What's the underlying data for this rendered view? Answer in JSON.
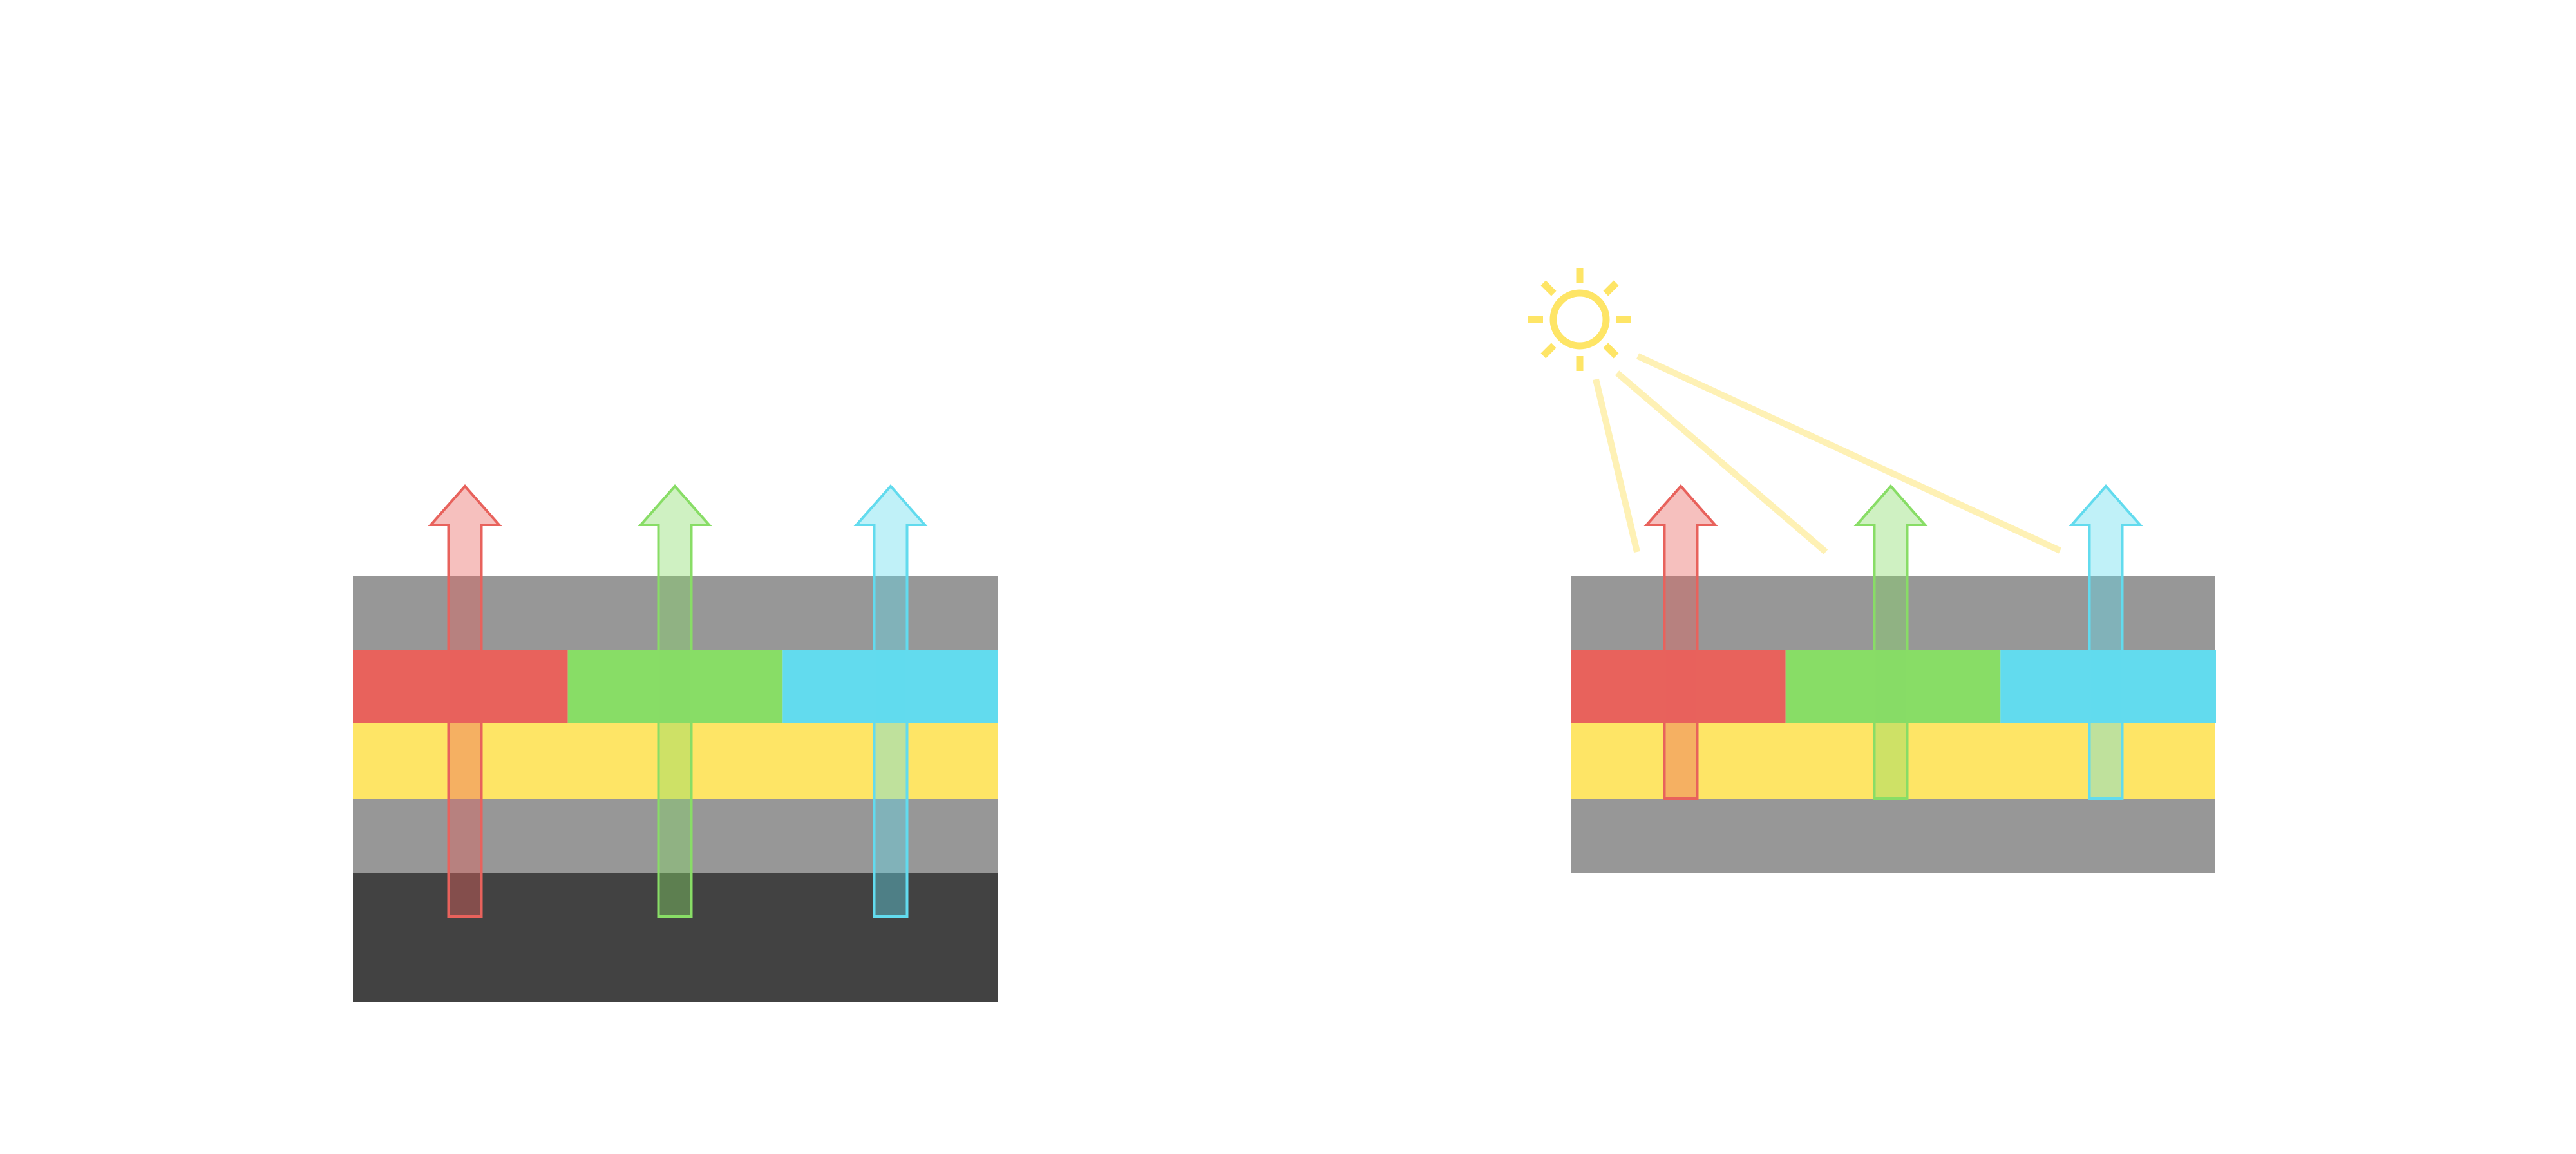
{
  "colors": {
    "gray_layer": "#979797",
    "dark_layer": "#424242",
    "yellow_layer": "#FEE566",
    "red": "#E8625C",
    "green": "#88DD66",
    "cyan": "#62DBEE",
    "sun": "#FEE566",
    "light_ray": "#FEF1B5"
  },
  "icons": {
    "sun": "sun-icon",
    "arrow": "arrow-up-icon"
  }
}
